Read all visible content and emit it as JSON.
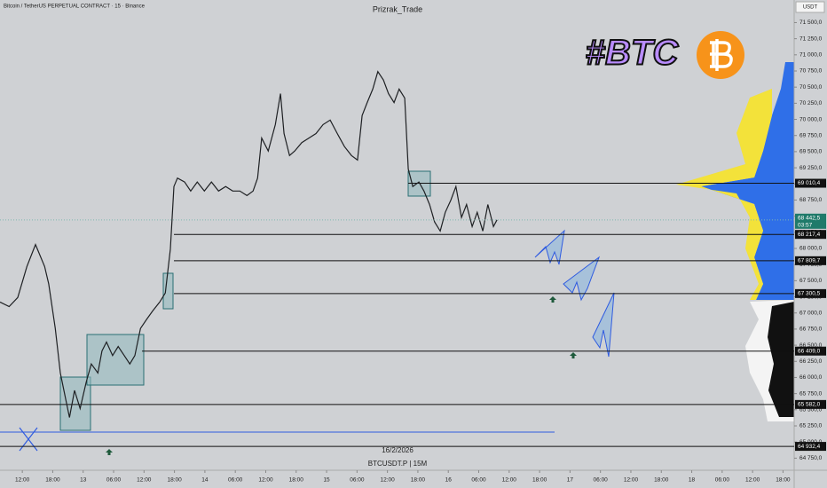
{
  "header": "Bitcoin / TetherUS PERPETUAL CONTRACT · 15 · Binance",
  "watermark": "#BTC",
  "date_label": "16/2/2026",
  "symbol": "BTCUSDT.P | 15M",
  "chart_data": {
    "type": "line",
    "title": "Prizrak_Trade",
    "unit": "USDT",
    "x": [
      -4.4,
      -2.6,
      -0.9,
      0.9,
      2.6,
      4.4,
      5.2,
      6.5,
      7.5,
      8.2,
      9.3,
      10.3,
      11.4,
      12.6,
      13.6,
      14.9,
      15.7,
      16.6,
      17.8,
      18.9,
      20.1,
      21.2,
      22.2,
      23.3,
      24.5,
      25.7,
      27.1,
      28.2,
      29.2,
      29.9,
      30.6,
      32.0,
      33.2,
      34.5,
      35.9,
      37.3,
      38.7,
      40.1,
      41.5,
      42.9,
      44.3,
      45.5,
      46.4,
      47.2,
      48.5,
      49.9,
      50.9,
      51.6,
      52.7,
      53.7,
      55.1,
      56.5,
      57.9,
      59.3,
      60.7,
      62.1,
      63.5,
      64.9,
      66.1,
      67.0,
      68.0,
      69.1,
      70.1,
      71.2,
      72.2,
      73.3,
      74.3,
      75.4,
      76.1,
      77.0,
      78.2,
      79.2,
      80.3,
      81.3,
      82.4,
      83.4,
      84.5,
      85.5,
      86.6,
      87.6,
      88.7,
      89.7,
      90.8,
      91.8,
      92.9,
      93.6
    ],
    "series": [
      {
        "color": "#1e2023",
        "values": [
          67170,
          67100,
          67240,
          67720,
          68060,
          67720,
          67450,
          66760,
          66070,
          65800,
          65380,
          65800,
          65520,
          65930,
          66210,
          66070,
          66410,
          66550,
          66340,
          66480,
          66340,
          66210,
          66340,
          66760,
          66900,
          67030,
          67170,
          67310,
          67990,
          68960,
          69090,
          69030,
          68890,
          69030,
          68890,
          69030,
          68890,
          68960,
          68890,
          68890,
          68820,
          68890,
          69090,
          69710,
          69510,
          69920,
          70400,
          69780,
          69440,
          69510,
          69640,
          69710,
          69780,
          69920,
          69990,
          69780,
          69580,
          69440,
          69370,
          70060,
          70260,
          70470,
          70740,
          70610,
          70400,
          70260,
          70470,
          70330,
          69230,
          68960,
          69030,
          68890,
          68680,
          68410,
          68270,
          68560,
          68750,
          68960,
          68480,
          68680,
          68340,
          68560,
          68270,
          68680,
          68340,
          68442.5
        ]
      }
    ],
    "xlim": [
      -4.4,
      152.2
    ],
    "xticks": [
      {
        "value": 0,
        "label": "12:00"
      },
      {
        "value": 6,
        "label": "18:00"
      },
      {
        "value": 12,
        "label": "13"
      },
      {
        "value": 18,
        "label": "06:00"
      },
      {
        "value": 24,
        "label": "12:00"
      },
      {
        "value": 30,
        "label": "18:00"
      },
      {
        "value": 36,
        "label": "14"
      },
      {
        "value": 42,
        "label": "06:00"
      },
      {
        "value": 48,
        "label": "12:00"
      },
      {
        "value": 54,
        "label": "18:00"
      },
      {
        "value": 60,
        "label": "15"
      },
      {
        "value": 66,
        "label": "06:00"
      },
      {
        "value": 72,
        "label": "12:00"
      },
      {
        "value": 78,
        "label": "18:00"
      },
      {
        "value": 84,
        "label": "16"
      },
      {
        "value": 90,
        "label": "06:00"
      },
      {
        "value": 96,
        "label": "12:00"
      },
      {
        "value": 102,
        "label": "18:00"
      },
      {
        "value": 108,
        "label": "17"
      },
      {
        "value": 114,
        "label": "06:00"
      },
      {
        "value": 120,
        "label": "12:00"
      },
      {
        "value": 126,
        "label": "18:00"
      },
      {
        "value": 132,
        "label": "18"
      },
      {
        "value": 138,
        "label": "06:00"
      },
      {
        "value": 144,
        "label": "12:00"
      },
      {
        "value": 150,
        "label": "18:00"
      }
    ],
    "ylim": [
      64700,
      71850
    ],
    "yticks": [
      {
        "value": 64750,
        "label": "64 750,0"
      },
      {
        "value": 65000,
        "label": "65 000,0"
      },
      {
        "value": 65250,
        "label": "65 250,0"
      },
      {
        "value": 65500,
        "label": "65 500,0"
      },
      {
        "value": 65750,
        "label": "65 750,0"
      },
      {
        "value": 66000,
        "label": "66 000,0"
      },
      {
        "value": 66250,
        "label": "66 250,0"
      },
      {
        "value": 66500,
        "label": "66 500,0"
      },
      {
        "value": 66750,
        "label": "66 750,0"
      },
      {
        "value": 67000,
        "label": "67 000,0"
      },
      {
        "value": 67250,
        "label": "67 250,0"
      },
      {
        "value": 67500,
        "label": "67 500,0"
      },
      {
        "value": 67750,
        "label": "67 750,0"
      },
      {
        "value": 68000,
        "label": "68 000,0"
      },
      {
        "value": 68250,
        "label": "68 250,0"
      },
      {
        "value": 68500,
        "label": "68 500,0"
      },
      {
        "value": 68750,
        "label": "68 750,0"
      },
      {
        "value": 69000,
        "label": "69 000,0"
      },
      {
        "value": 69250,
        "label": "69 250,0"
      },
      {
        "value": 69500,
        "label": "69 500,0"
      },
      {
        "value": 69750,
        "label": "69 750,0"
      },
      {
        "value": 70000,
        "label": "70 000,0"
      },
      {
        "value": 70250,
        "label": "70 250,0"
      },
      {
        "value": 70500,
        "label": "70 500,0"
      },
      {
        "value": 70750,
        "label": "70 750,0"
      },
      {
        "value": 71000,
        "label": "71 000,0"
      },
      {
        "value": 71250,
        "label": "71 250,0"
      },
      {
        "value": 71500,
        "label": "71 500,0"
      }
    ],
    "levels": [
      {
        "value": 69010.4,
        "label": "69 010,4",
        "from": 76.1
      },
      {
        "value": 68217.4,
        "label": "68 217,4",
        "from": 29.9
      },
      {
        "value": 67809.7,
        "label": "67 809,7",
        "from": 29.9
      },
      {
        "value": 67300.5,
        "label": "67 300,5",
        "from": 29.9
      },
      {
        "value": 66409.0,
        "label": "66 409,0",
        "from": 23.6
      },
      {
        "value": 65582.0,
        "label": "65 582,0",
        "from": -4.4
      },
      {
        "value": 64932.4,
        "label": "64 932,4",
        "from": -4.4
      }
    ],
    "last_price": {
      "value": 68442.5,
      "label": "68 442,5",
      "countdown": "03:57"
    },
    "grid": false
  }
}
